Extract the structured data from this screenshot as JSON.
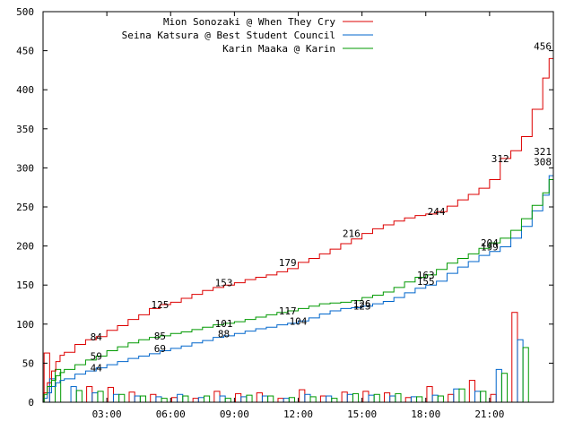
{
  "chart_data": {
    "type": "line",
    "title": "",
    "xlabel": "",
    "ylabel": "",
    "xlim": [
      0,
      24
    ],
    "ylim": [
      0,
      500
    ],
    "x_ticks": [
      {
        "x": 3,
        "label": "03:00"
      },
      {
        "x": 6,
        "label": "06:00"
      },
      {
        "x": 9,
        "label": "09:00"
      },
      {
        "x": 12,
        "label": "12:00"
      },
      {
        "x": 15,
        "label": "15:00"
      },
      {
        "x": 18,
        "label": "18:00"
      },
      {
        "x": 21,
        "label": "21:00"
      }
    ],
    "y_ticks": [
      0,
      50,
      100,
      150,
      200,
      250,
      300,
      350,
      400,
      450,
      500
    ],
    "grid": false,
    "legend_position": "top-right",
    "series": [
      {
        "name": "Mion Sonozaki @ When They Cry",
        "color": "#dd0000",
        "cumulative": [
          [
            0,
            0
          ],
          [
            0.05,
            12
          ],
          [
            0.2,
            25
          ],
          [
            0.4,
            40
          ],
          [
            0.6,
            52
          ],
          [
            0.8,
            60
          ],
          [
            1,
            64
          ],
          [
            1.5,
            74
          ],
          [
            2,
            80
          ],
          [
            2.5,
            84
          ],
          [
            3,
            92
          ],
          [
            3.5,
            98
          ],
          [
            4,
            106
          ],
          [
            4.5,
            112
          ],
          [
            5,
            120
          ],
          [
            5.5,
            125
          ],
          [
            6,
            128
          ],
          [
            6.5,
            133
          ],
          [
            7,
            138
          ],
          [
            7.5,
            143
          ],
          [
            8,
            147
          ],
          [
            8.5,
            150
          ],
          [
            9,
            153
          ],
          [
            9.5,
            157
          ],
          [
            10,
            160
          ],
          [
            10.5,
            163
          ],
          [
            11,
            167
          ],
          [
            11.5,
            171
          ],
          [
            12,
            179
          ],
          [
            12.5,
            184
          ],
          [
            13,
            190
          ],
          [
            13.5,
            196
          ],
          [
            14,
            203
          ],
          [
            14.5,
            209
          ],
          [
            15,
            216
          ],
          [
            15.5,
            222
          ],
          [
            16,
            227
          ],
          [
            16.5,
            232
          ],
          [
            17,
            236
          ],
          [
            17.5,
            239
          ],
          [
            18,
            241
          ],
          [
            18.5,
            244
          ],
          [
            19,
            251
          ],
          [
            19.5,
            259
          ],
          [
            20,
            266
          ],
          [
            20.5,
            274
          ],
          [
            21,
            285
          ],
          [
            21.5,
            312
          ],
          [
            22,
            322
          ],
          [
            22.5,
            340
          ],
          [
            23,
            375
          ],
          [
            23.5,
            415
          ],
          [
            23.8,
            440
          ],
          [
            24,
            456
          ]
        ],
        "hourly": [
          63,
          0,
          20,
          19,
          13,
          10,
          6,
          5,
          14,
          11,
          12,
          5,
          16,
          8,
          13,
          14,
          12,
          6,
          20,
          10,
          28,
          10,
          115,
          0
        ],
        "labels": [
          [
            2.5,
            84
          ],
          [
            5.5,
            125
          ],
          [
            8.5,
            153
          ],
          [
            11.5,
            179
          ],
          [
            14.5,
            216
          ],
          [
            18.5,
            244
          ],
          [
            21.5,
            312
          ],
          [
            24,
            456
          ]
        ]
      },
      {
        "name": "Seina Katsura @ Best Student Council",
        "color": "#0066cc",
        "cumulative": [
          [
            0,
            0
          ],
          [
            0.05,
            5
          ],
          [
            0.2,
            12
          ],
          [
            0.4,
            20
          ],
          [
            0.6,
            25
          ],
          [
            0.8,
            28
          ],
          [
            1,
            30
          ],
          [
            1.5,
            36
          ],
          [
            2,
            40
          ],
          [
            2.5,
            44
          ],
          [
            3,
            48
          ],
          [
            3.5,
            52
          ],
          [
            4,
            56
          ],
          [
            4.5,
            59
          ],
          [
            5,
            62
          ],
          [
            5.5,
            66
          ],
          [
            6,
            69
          ],
          [
            6.5,
            72
          ],
          [
            7,
            76
          ],
          [
            7.5,
            79
          ],
          [
            8,
            83
          ],
          [
            8.5,
            85
          ],
          [
            9,
            88
          ],
          [
            9.5,
            91
          ],
          [
            10,
            94
          ],
          [
            10.5,
            96
          ],
          [
            11,
            99
          ],
          [
            11.5,
            101
          ],
          [
            12,
            104
          ],
          [
            12.5,
            108
          ],
          [
            13,
            113
          ],
          [
            13.5,
            117
          ],
          [
            14,
            120
          ],
          [
            14.5,
            121
          ],
          [
            15,
            123
          ],
          [
            15.5,
            126
          ],
          [
            16,
            129
          ],
          [
            16.5,
            134
          ],
          [
            17,
            140
          ],
          [
            17.5,
            146
          ],
          [
            18,
            150
          ],
          [
            18.5,
            155
          ],
          [
            19,
            165
          ],
          [
            19.5,
            173
          ],
          [
            20,
            180
          ],
          [
            20.5,
            188
          ],
          [
            21,
            193
          ],
          [
            21.5,
            199
          ],
          [
            22,
            210
          ],
          [
            22.5,
            225
          ],
          [
            23,
            245
          ],
          [
            23.5,
            265
          ],
          [
            23.8,
            290
          ],
          [
            24,
            321
          ]
        ],
        "hourly": [
          30,
          20,
          12,
          10,
          8,
          7,
          10,
          6,
          8,
          7,
          8,
          5,
          10,
          8,
          10,
          9,
          8,
          7,
          9,
          17,
          14,
          42,
          80,
          0
        ],
        "labels": [
          [
            2.5,
            44
          ],
          [
            5.5,
            69
          ],
          [
            8.5,
            88
          ],
          [
            12,
            104
          ],
          [
            15,
            123
          ],
          [
            18,
            155
          ],
          [
            21,
            199
          ],
          [
            24,
            321
          ]
        ]
      },
      {
        "name": "Karin Maaka @ Karin",
        "color": "#009900",
        "cumulative": [
          [
            0,
            0
          ],
          [
            0.05,
            10
          ],
          [
            0.2,
            20
          ],
          [
            0.4,
            28
          ],
          [
            0.6,
            34
          ],
          [
            0.8,
            38
          ],
          [
            1,
            42
          ],
          [
            1.5,
            48
          ],
          [
            2,
            54
          ],
          [
            2.5,
            59
          ],
          [
            3,
            66
          ],
          [
            3.5,
            71
          ],
          [
            4,
            76
          ],
          [
            4.5,
            80
          ],
          [
            5,
            83
          ],
          [
            5.5,
            85
          ],
          [
            6,
            88
          ],
          [
            6.5,
            90
          ],
          [
            7,
            93
          ],
          [
            7.5,
            96
          ],
          [
            8,
            99
          ],
          [
            8.5,
            101
          ],
          [
            9,
            103
          ],
          [
            9.5,
            106
          ],
          [
            10,
            109
          ],
          [
            10.5,
            112
          ],
          [
            11,
            115
          ],
          [
            11.5,
            117
          ],
          [
            12,
            120
          ],
          [
            12.5,
            123
          ],
          [
            13,
            126
          ],
          [
            13.5,
            127
          ],
          [
            14,
            128
          ],
          [
            14.5,
            130
          ],
          [
            15,
            134
          ],
          [
            15.5,
            137
          ],
          [
            16,
            141
          ],
          [
            16.5,
            147
          ],
          [
            17,
            154
          ],
          [
            17.5,
            160
          ],
          [
            18,
            163
          ],
          [
            18.5,
            170
          ],
          [
            19,
            178
          ],
          [
            19.5,
            184
          ],
          [
            20,
            190
          ],
          [
            20.5,
            197
          ],
          [
            21,
            204
          ],
          [
            21.5,
            210
          ],
          [
            22,
            220
          ],
          [
            22.5,
            235
          ],
          [
            23,
            252
          ],
          [
            23.5,
            268
          ],
          [
            23.8,
            285
          ],
          [
            24,
            308
          ]
        ],
        "hourly": [
          42,
          15,
          14,
          10,
          8,
          5,
          8,
          8,
          5,
          9,
          8,
          6,
          7,
          5,
          11,
          10,
          11,
          7,
          8,
          17,
          14,
          37,
          70,
          0
        ],
        "labels": [
          [
            2.5,
            59
          ],
          [
            5.5,
            85
          ],
          [
            8.5,
            101
          ],
          [
            11.5,
            117
          ],
          [
            15,
            126
          ],
          [
            18,
            163
          ],
          [
            21,
            204
          ],
          [
            24,
            308
          ]
        ]
      }
    ]
  }
}
